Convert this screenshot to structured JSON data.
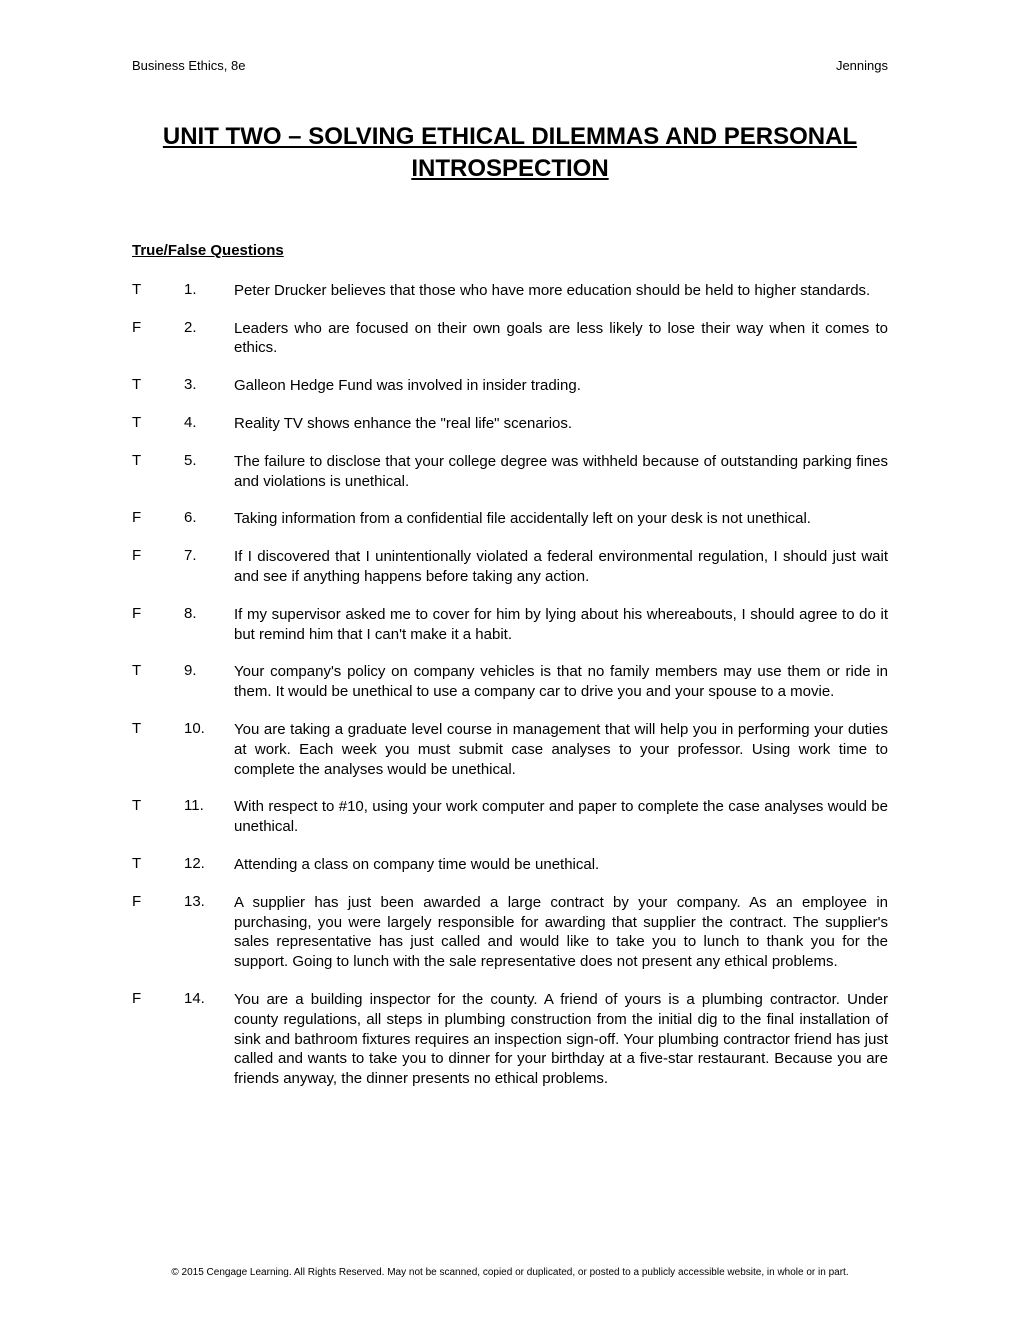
{
  "header": {
    "left": "Business Ethics, 8e",
    "right": "Jennings"
  },
  "title": "UNIT TWO – SOLVING ETHICAL DILEMMAS AND PERSONAL INTROSPECTION",
  "section_heading": "True/False Questions",
  "questions": [
    {
      "answer": "T",
      "number": "1.",
      "text": "Peter Drucker believes that those who have more education should be held to higher standards."
    },
    {
      "answer": "F",
      "number": "2.",
      "text": "Leaders who are focused on their own goals are less likely to lose their way when it comes to ethics."
    },
    {
      "answer": "T",
      "number": "3.",
      "text": "Galleon Hedge Fund was involved in insider trading."
    },
    {
      "answer": "T",
      "number": "4.",
      "text": "Reality TV shows enhance the \"real life\" scenarios."
    },
    {
      "answer": "T",
      "number": "5.",
      "text": "The failure to disclose that your college degree was withheld because of outstanding parking fines and violations is unethical."
    },
    {
      "answer": "F",
      "number": "6.",
      "text": "Taking information from a confidential file accidentally left on your desk is not unethical."
    },
    {
      "answer": "F",
      "number": "7.",
      "text": "If I discovered that I unintentionally violated a federal environmental regulation, I should just wait and see if anything happens before taking any action."
    },
    {
      "answer": "F",
      "number": "8.",
      "text": "If my supervisor asked me to cover for him by lying about his whereabouts, I should agree to do it but remind him that I can't make it a habit."
    },
    {
      "answer": "T",
      "number": "9.",
      "text": "Your company's policy on company vehicles is that no family members may use them or ride in them.  It would be unethical to use a company car to drive you and your spouse to a movie."
    },
    {
      "answer": "T",
      "number": "10.",
      "text": "You are taking a graduate level course in management that will help you in performing your duties at work.  Each week you must submit case analyses to your professor.  Using work time to complete the analyses would be unethical."
    },
    {
      "answer": "T",
      "number": "11.",
      "text": "With respect to #10, using your work computer and paper to complete the case analyses would be unethical."
    },
    {
      "answer": "T",
      "number": "12.",
      "text": "Attending a class on company time would be unethical."
    },
    {
      "answer": "F",
      "number": "13.",
      "text": "A supplier has just been awarded a large contract by your company.  As an employee in purchasing, you were largely responsible for awarding that supplier the contract.  The supplier's sales representative has just called and would like to take you to lunch to thank you for the support.  Going to lunch with the sale representative does not present any ethical problems."
    },
    {
      "answer": "F",
      "number": "14.",
      "text": "You are a building inspector for the county.  A friend of yours is a plumbing contractor.  Under county regulations, all steps in plumbing construction from the initial dig to the final installation of sink and bathroom fixtures requires an inspection sign-off.  Your plumbing contractor friend has just called and wants to take you to dinner for your birthday at a five-star restaurant.  Because you are friends anyway, the dinner presents no ethical problems."
    }
  ],
  "footer": "© 2015 Cengage Learning. All Rights Reserved. May not be scanned, copied or duplicated, or posted to a publicly accessible website, in whole or in part."
}
